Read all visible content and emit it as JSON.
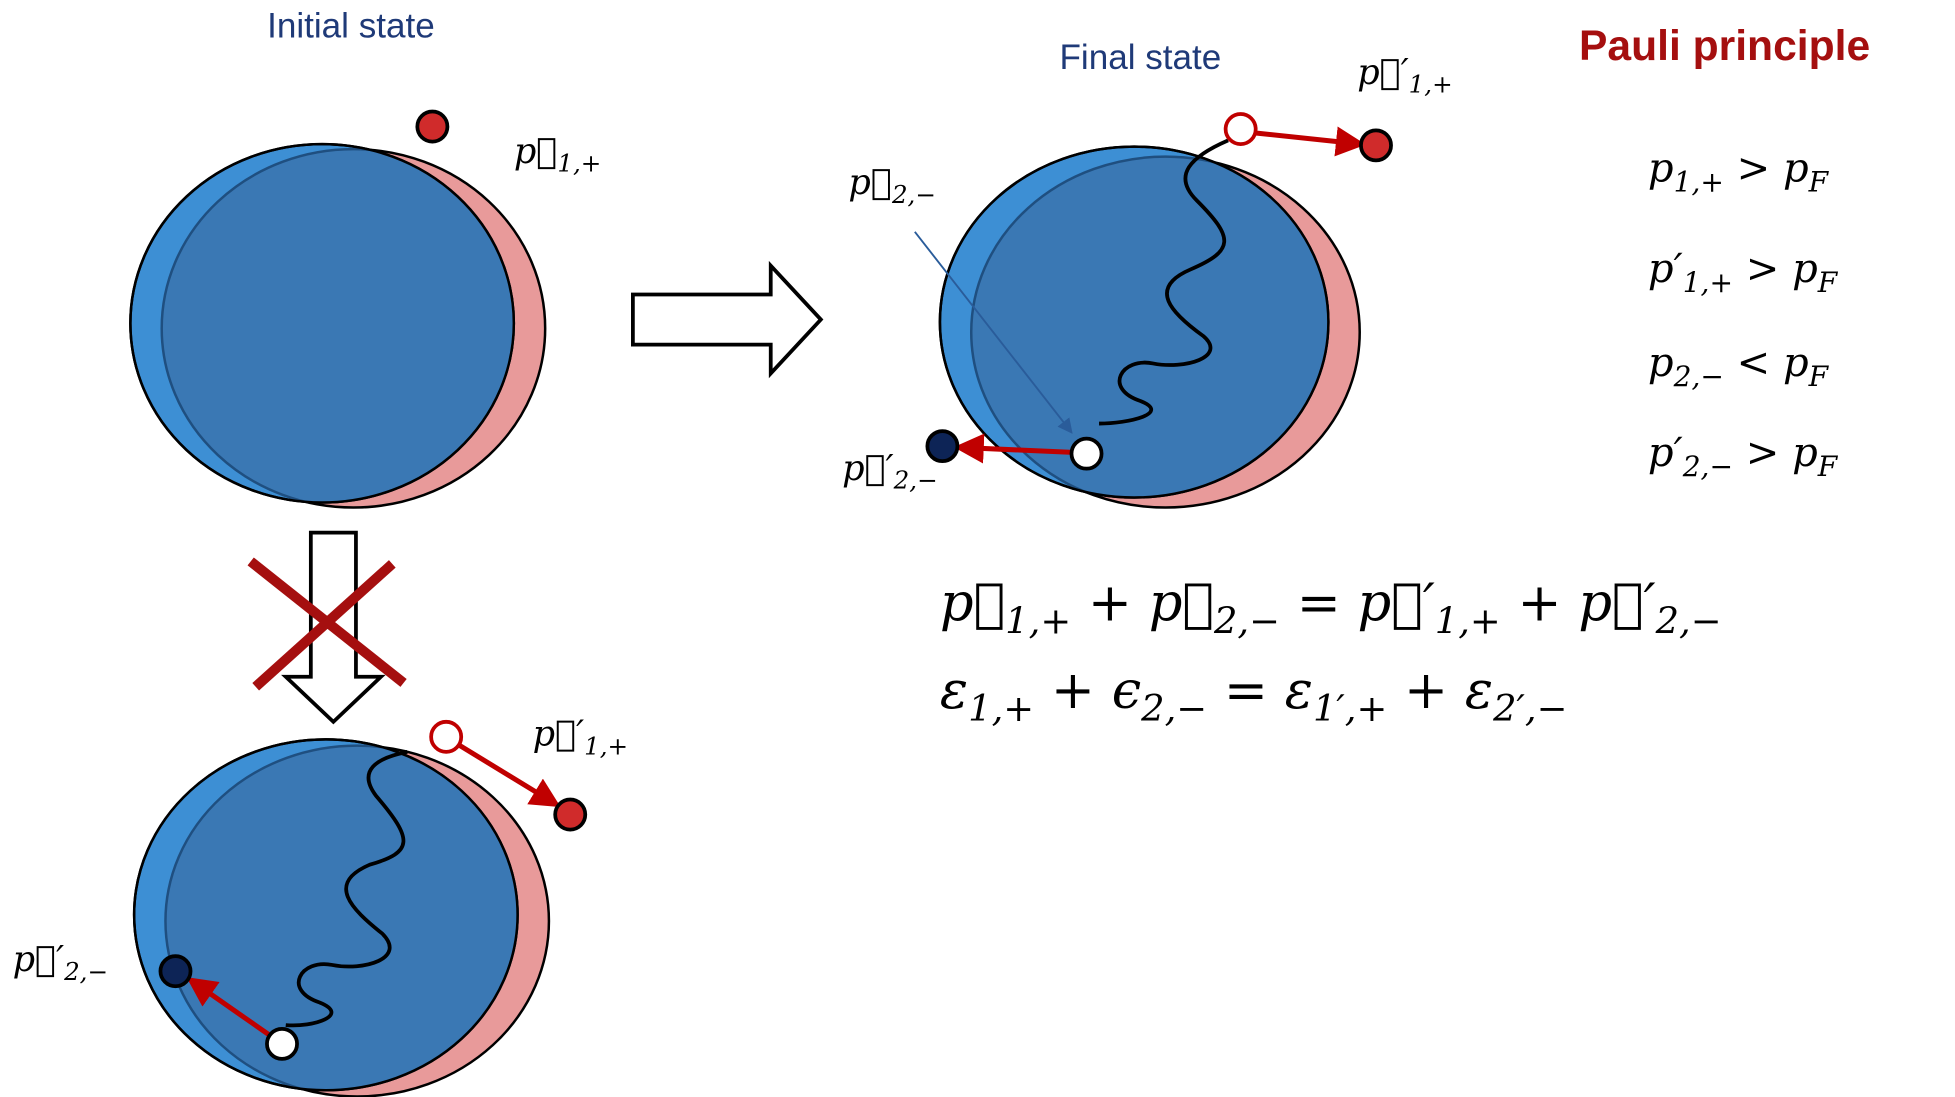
{
  "initial": {
    "title": "Initial state",
    "p1": [
      {
        "text": "p⃗",
        "sub": "1,+"
      }
    ]
  },
  "forbidden": {
    "p1_out": [
      {
        "text": "p⃗′",
        "sub": "1,+"
      }
    ],
    "p2_out": [
      {
        "text": "p⃗′",
        "sub": "2,−"
      }
    ]
  },
  "final": {
    "title": "Final state",
    "p1_out": [
      {
        "text": "p⃗′",
        "sub": "1,+"
      }
    ],
    "p2_in": [
      {
        "text": "p⃗",
        "sub": "2,−"
      }
    ],
    "p2_out": [
      {
        "text": "p⃗′",
        "sub": "2,−"
      }
    ]
  },
  "pauli": {
    "title": "Pauli principle",
    "conditions": [
      [
        {
          "text": "p",
          "sub": "1,+"
        },
        {
          "text": " > p",
          "sub": "F"
        }
      ],
      [
        {
          "text": "p′",
          "sub": "1,+"
        },
        {
          "text": " > p",
          "sub": "F"
        }
      ],
      [
        {
          "text": "p",
          "sub": "2,−"
        },
        {
          "text": " < p",
          "sub": "F"
        }
      ],
      [
        {
          "text": "p′",
          "sub": "2,−"
        },
        {
          "text": " > p",
          "sub": "F"
        }
      ]
    ]
  },
  "equations": [
    [
      {
        "text": "p⃗",
        "sub": "1,+"
      },
      {
        "text": " + p⃗",
        "sub": "2,−"
      },
      {
        "text": " = p⃗′",
        "sub": "1,+"
      },
      {
        "text": " + p⃗′",
        "sub": "2,−"
      }
    ],
    [
      {
        "text": "ε",
        "sub": "1,+"
      },
      {
        "text": " + ϵ",
        "sub": "2,−"
      },
      {
        "text": " = ε",
        "sub": "1′,+"
      },
      {
        "text": " + ε",
        "sub": "2′,−"
      }
    ]
  ]
}
